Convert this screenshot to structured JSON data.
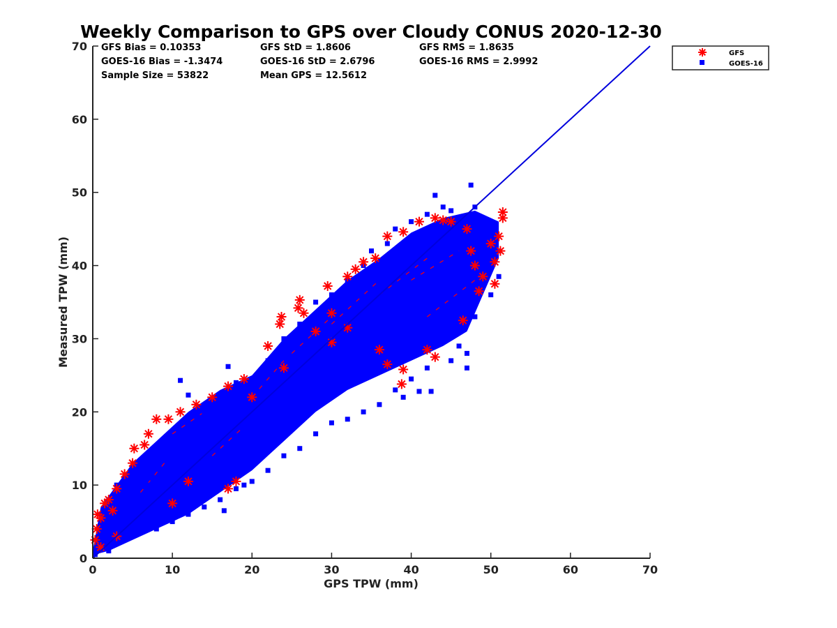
{
  "chart_data": {
    "type": "scatter",
    "title": "Weekly Comparison to GPS over Cloudy CONUS 2020-12-30",
    "xlabel": "GPS TPW (mm)",
    "ylabel": "Measured TPW (mm)",
    "xlim": [
      0,
      70
    ],
    "ylim": [
      0,
      70
    ],
    "xticks": [
      "0",
      "10",
      "20",
      "30",
      "40",
      "50",
      "60",
      "70"
    ],
    "yticks": [
      "0",
      "10",
      "20",
      "30",
      "40",
      "50",
      "60",
      "70"
    ],
    "grid": false,
    "legend_position": "outside-top-right",
    "stats": [
      [
        "GFS Bias = 0.10353",
        "GFS StD = 1.8606",
        "GFS RMS = 1.8635"
      ],
      [
        "GOES-16 Bias = -1.3474",
        "GOES-16 StD = 2.6796",
        "GOES-16 RMS = 2.9992"
      ],
      [
        "Sample Size = 53822",
        "Mean GPS = 12.5612",
        ""
      ]
    ],
    "reference_line": {
      "x": [
        0,
        70
      ],
      "y": [
        0,
        70
      ],
      "color": "#0000dd"
    },
    "series": [
      {
        "name": "GFS",
        "marker": "asterisk",
        "color": "#ff0000",
        "points": [
          [
            0.3,
            2.5
          ],
          [
            0.5,
            4.0
          ],
          [
            0.6,
            6.0
          ],
          [
            1.0,
            5.5
          ],
          [
            1.5,
            7.5
          ],
          [
            2.0,
            8.0
          ],
          [
            2.5,
            6.5
          ],
          [
            3.0,
            9.5
          ],
          [
            4.0,
            11.5
          ],
          [
            5.0,
            13.0
          ],
          [
            5.2,
            15.0
          ],
          [
            6.5,
            15.5
          ],
          [
            7.0,
            17.0
          ],
          [
            8.0,
            19.0
          ],
          [
            9.5,
            19.0
          ],
          [
            11,
            20
          ],
          [
            13,
            21
          ],
          [
            15,
            22
          ],
          [
            17,
            23.5
          ],
          [
            19,
            24.5
          ],
          [
            22,
            29
          ],
          [
            23.5,
            32.0
          ],
          [
            23.7,
            33.0
          ],
          [
            25.8,
            34.2
          ],
          [
            26,
            35.3
          ],
          [
            26.5,
            33.5
          ],
          [
            29.5,
            37.2
          ],
          [
            30,
            33.5
          ],
          [
            32,
            38.5
          ],
          [
            33,
            39.5
          ],
          [
            34,
            40.5
          ],
          [
            35.5,
            41.0
          ],
          [
            37,
            44
          ],
          [
            39,
            44.6
          ],
          [
            41,
            46
          ],
          [
            43,
            46.5
          ],
          [
            44,
            46.2
          ],
          [
            45,
            46
          ],
          [
            47,
            45
          ],
          [
            47.5,
            42
          ],
          [
            48,
            40
          ],
          [
            48.5,
            36.5
          ],
          [
            49,
            38.5
          ],
          [
            50,
            43
          ],
          [
            50.5,
            40.5
          ],
          [
            51,
            44
          ],
          [
            51.2,
            42
          ],
          [
            51.5,
            47.3
          ],
          [
            51.5,
            46.5
          ],
          [
            50.5,
            37.5
          ],
          [
            46.5,
            32.5
          ],
          [
            43,
            27.5
          ],
          [
            42,
            28.5
          ],
          [
            39,
            25.8
          ],
          [
            38.8,
            23.8
          ],
          [
            37,
            26.5
          ],
          [
            36,
            28.5
          ],
          [
            32,
            31.5
          ],
          [
            30,
            29.5
          ],
          [
            28,
            31
          ],
          [
            24,
            26
          ],
          [
            20,
            22
          ],
          [
            18,
            10.5
          ],
          [
            17,
            9.5
          ],
          [
            10,
            7.5
          ],
          [
            12,
            10.5
          ],
          [
            3,
            3
          ],
          [
            1,
            1.5
          ]
        ]
      },
      {
        "name": "GOES-16",
        "marker": "square",
        "color": "#0000ff",
        "points": [
          [
            0.3,
            0.5
          ],
          [
            1,
            1.5
          ],
          [
            2,
            1
          ],
          [
            3,
            2
          ],
          [
            5,
            3
          ],
          [
            1,
            6
          ],
          [
            2,
            8
          ],
          [
            3,
            10
          ],
          [
            5,
            11
          ],
          [
            7,
            10
          ],
          [
            8,
            13
          ],
          [
            10,
            14
          ],
          [
            12,
            17
          ],
          [
            14,
            20
          ],
          [
            16,
            22
          ],
          [
            18,
            24
          ],
          [
            20,
            23
          ],
          [
            11,
            24.3
          ],
          [
            17,
            26.2
          ],
          [
            12,
            22.3
          ],
          [
            22,
            27
          ],
          [
            24,
            30
          ],
          [
            26,
            32
          ],
          [
            28,
            35
          ],
          [
            30,
            36
          ],
          [
            32,
            38
          ],
          [
            34,
            40
          ],
          [
            35,
            42
          ],
          [
            37,
            43
          ],
          [
            38,
            45
          ],
          [
            40,
            46
          ],
          [
            42,
            47
          ],
          [
            44,
            48
          ],
          [
            43,
            49.6
          ],
          [
            47.5,
            51
          ],
          [
            45,
            47.5
          ],
          [
            48,
            48
          ],
          [
            49,
            46
          ],
          [
            50,
            44
          ],
          [
            51,
            42
          ],
          [
            51,
            38.5
          ],
          [
            50,
            36
          ],
          [
            48,
            33
          ],
          [
            47,
            28
          ],
          [
            45,
            27
          ],
          [
            42,
            26
          ],
          [
            40,
            24.5
          ],
          [
            38,
            23
          ],
          [
            36,
            21
          ],
          [
            34,
            20
          ],
          [
            32,
            19
          ],
          [
            30,
            18.5
          ],
          [
            28,
            17
          ],
          [
            26,
            15
          ],
          [
            24,
            14
          ],
          [
            22,
            12
          ],
          [
            20,
            10.5
          ],
          [
            18,
            9.5
          ],
          [
            16,
            8
          ],
          [
            14,
            7
          ],
          [
            12,
            6
          ],
          [
            10,
            5
          ],
          [
            8,
            4
          ],
          [
            6,
            3.5
          ],
          [
            4,
            2.5
          ],
          [
            16.5,
            6.5
          ],
          [
            19,
            10
          ],
          [
            39,
            22
          ],
          [
            42.5,
            22.8
          ],
          [
            41,
            22.8
          ],
          [
            40,
            27.5
          ],
          [
            44,
            32
          ],
          [
            46,
            29
          ],
          [
            47,
            26
          ],
          [
            48,
            36
          ]
        ]
      }
    ]
  }
}
